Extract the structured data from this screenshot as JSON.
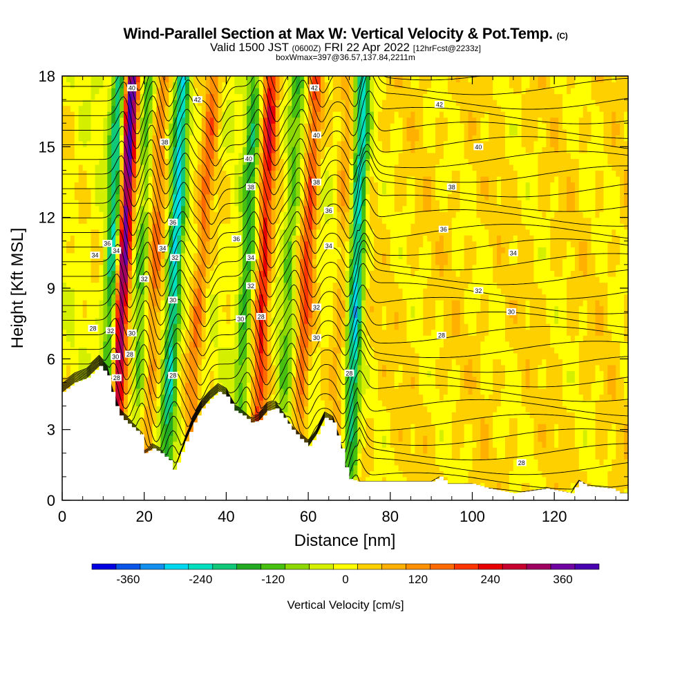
{
  "header": {
    "title_main": "Wind-Parallel Section at Max W: Vertical Velocity & Pot.Temp.",
    "title_mark": "(C)",
    "valid_prefix": "Valid 1500 JST",
    "valid_utc": "(0600Z)",
    "valid_date": "FRI 22 Apr 2022",
    "forecast_tag": "[12hrFcst@2233z]",
    "subtitle2": "boxWmax=397@36.57,137.84,2211m"
  },
  "chart_data": {
    "type": "heatmap",
    "title": "Wind-Parallel Section at Max W: Vertical Velocity & Pot.Temp.",
    "xlabel": "Distance [nm]",
    "ylabel": "Height [Kft MSL]",
    "xlim": [
      0,
      138
    ],
    "ylim": [
      0,
      18
    ],
    "x_ticks": [
      0,
      20,
      40,
      60,
      80,
      100,
      120
    ],
    "x_tick_labels": [
      "0",
      "20",
      "40",
      "60",
      "80",
      "100",
      "120"
    ],
    "y_ticks": [
      0,
      3,
      6,
      9,
      12,
      15,
      18
    ],
    "y_tick_labels": [
      "0",
      "3",
      "6",
      "9",
      "12",
      "15",
      "18"
    ],
    "grid": false,
    "colorbar": {
      "label": "Vertical Velocity [cm/s]",
      "bounds": [
        -420,
        420
      ],
      "step": 40,
      "tick_values": [
        -360,
        -240,
        -120,
        0,
        120,
        240,
        360
      ],
      "tick_labels": [
        "-360",
        "-240",
        "-120",
        "0",
        "120",
        "240",
        "360"
      ],
      "colors": [
        "#0000e0",
        "#0a55e8",
        "#1290f0",
        "#00d8f0",
        "#00e0c0",
        "#10c878",
        "#22aa22",
        "#48c010",
        "#8cd800",
        "#d4f000",
        "#ffff00",
        "#ffd000",
        "#ffb000",
        "#ff9000",
        "#ff6a00",
        "#ff3500",
        "#e80000",
        "#c80030",
        "#a00060",
        "#7000a0",
        "#4800b0"
      ]
    },
    "terrain_kft": [
      [
        0,
        4.6
      ],
      [
        3,
        5.0
      ],
      [
        6,
        5.2
      ],
      [
        9,
        5.7
      ],
      [
        11,
        5.3
      ],
      [
        12,
        4.6
      ],
      [
        13,
        4.0
      ],
      [
        14,
        3.6
      ],
      [
        15,
        3.4
      ],
      [
        17,
        3.1
      ],
      [
        19,
        2.8
      ],
      [
        20,
        2.0
      ],
      [
        22,
        2.2
      ],
      [
        24,
        2.0
      ],
      [
        26,
        1.7
      ],
      [
        27,
        1.3
      ],
      [
        28,
        1.6
      ],
      [
        30,
        2.5
      ],
      [
        32,
        3.3
      ],
      [
        34,
        3.9
      ],
      [
        36,
        4.3
      ],
      [
        38,
        4.6
      ],
      [
        40,
        4.4
      ],
      [
        42,
        3.8
      ],
      [
        44,
        3.6
      ],
      [
        46,
        3.3
      ],
      [
        48,
        3.4
      ],
      [
        50,
        3.8
      ],
      [
        52,
        3.9
      ],
      [
        54,
        3.5
      ],
      [
        56,
        3.0
      ],
      [
        58,
        2.6
      ],
      [
        60,
        2.3
      ],
      [
        62,
        2.8
      ],
      [
        64,
        3.5
      ],
      [
        66,
        3.3
      ],
      [
        68,
        2.2
      ],
      [
        69,
        1.4
      ],
      [
        70,
        0.9
      ],
      [
        72,
        0.8
      ],
      [
        80,
        0.8
      ],
      [
        90,
        0.8
      ],
      [
        92,
        1.0
      ],
      [
        94,
        0.7
      ],
      [
        100,
        0.7
      ],
      [
        104,
        0.5
      ],
      [
        110,
        0.3
      ],
      [
        118,
        0.5
      ],
      [
        124,
        0.3
      ],
      [
        126,
        0.8
      ],
      [
        128,
        0.6
      ],
      [
        134,
        0.5
      ],
      [
        136,
        0.3
      ],
      [
        138,
        0.3
      ]
    ],
    "updraft_bands": [
      {
        "x_base": 12.2,
        "x_top": 17.0,
        "peak_w": 400
      },
      {
        "x_base": 20.5,
        "x_top": 24.5,
        "peak_w": 140
      },
      {
        "x_base": 30.0,
        "x_top": 37.0,
        "peak_w": 150
      },
      {
        "x_base": 47.0,
        "x_top": 51.0,
        "peak_w": 240
      },
      {
        "x_base": 57.0,
        "x_top": 62.0,
        "peak_w": 190
      },
      {
        "x_base": 66.0,
        "x_top": 70.0,
        "peak_w": 80
      }
    ],
    "downdraft_bands": [
      {
        "x_base": 10.5,
        "x_top": 14.0,
        "peak_w": -240
      },
      {
        "x_base": 17.5,
        "x_top": 21.0,
        "peak_w": -110
      },
      {
        "x_base": 25.0,
        "x_top": 29.5,
        "peak_w": -260
      },
      {
        "x_base": 42.5,
        "x_top": 47.0,
        "peak_w": -160
      },
      {
        "x_base": 53.0,
        "x_top": 57.5,
        "peak_w": -110
      },
      {
        "x_base": 70.0,
        "x_top": 73.5,
        "peak_w": -270
      }
    ],
    "theta_contour_labels": [
      {
        "x": 8.0,
        "y": 10.4,
        "text": "34"
      },
      {
        "x": 7.5,
        "y": 7.3,
        "text": "28"
      },
      {
        "x": 11.0,
        "y": 10.9,
        "text": "36"
      },
      {
        "x": 13.2,
        "y": 10.6,
        "text": "34"
      },
      {
        "x": 11.8,
        "y": 7.2,
        "text": "32"
      },
      {
        "x": 13.0,
        "y": 6.1,
        "text": "30"
      },
      {
        "x": 13.3,
        "y": 5.2,
        "text": "28"
      },
      {
        "x": 17.0,
        "y": 17.5,
        "text": "40"
      },
      {
        "x": 25.0,
        "y": 15.2,
        "text": "38"
      },
      {
        "x": 27.0,
        "y": 11.8,
        "text": "36"
      },
      {
        "x": 24.5,
        "y": 10.7,
        "text": "34"
      },
      {
        "x": 27.5,
        "y": 10.3,
        "text": "32"
      },
      {
        "x": 20.0,
        "y": 9.4,
        "text": "32"
      },
      {
        "x": 27.0,
        "y": 8.5,
        "text": "30"
      },
      {
        "x": 17.0,
        "y": 7.1,
        "text": "30"
      },
      {
        "x": 16.5,
        "y": 6.2,
        "text": "28"
      },
      {
        "x": 27.0,
        "y": 5.3,
        "text": "28"
      },
      {
        "x": 33.0,
        "y": 17.0,
        "text": "42"
      },
      {
        "x": 45.5,
        "y": 14.5,
        "text": "40"
      },
      {
        "x": 46.0,
        "y": 13.3,
        "text": "38"
      },
      {
        "x": 42.5,
        "y": 11.1,
        "text": "36"
      },
      {
        "x": 46.0,
        "y": 10.3,
        "text": "34"
      },
      {
        "x": 46.0,
        "y": 9.1,
        "text": "32"
      },
      {
        "x": 43.5,
        "y": 7.7,
        "text": "30"
      },
      {
        "x": 48.5,
        "y": 7.8,
        "text": "28"
      },
      {
        "x": 61.5,
        "y": 17.5,
        "text": "42"
      },
      {
        "x": 62.0,
        "y": 15.5,
        "text": "40"
      },
      {
        "x": 62.0,
        "y": 13.5,
        "text": "38"
      },
      {
        "x": 65.0,
        "y": 12.3,
        "text": "36"
      },
      {
        "x": 65.0,
        "y": 10.8,
        "text": "34"
      },
      {
        "x": 62.0,
        "y": 8.2,
        "text": "32"
      },
      {
        "x": 62.0,
        "y": 6.9,
        "text": "30"
      },
      {
        "x": 70.0,
        "y": 5.4,
        "text": "28"
      },
      {
        "x": 92.0,
        "y": 16.8,
        "text": "42"
      },
      {
        "x": 101.5,
        "y": 15.0,
        "text": "40"
      },
      {
        "x": 95.0,
        "y": 13.3,
        "text": "38"
      },
      {
        "x": 93.0,
        "y": 11.5,
        "text": "36"
      },
      {
        "x": 110.0,
        "y": 10.5,
        "text": "34"
      },
      {
        "x": 101.5,
        "y": 8.9,
        "text": "32"
      },
      {
        "x": 109.5,
        "y": 8.0,
        "text": "30"
      },
      {
        "x": 92.5,
        "y": 7.0,
        "text": "28"
      },
      {
        "x": 112.0,
        "y": 1.6,
        "text": "28"
      }
    ]
  }
}
